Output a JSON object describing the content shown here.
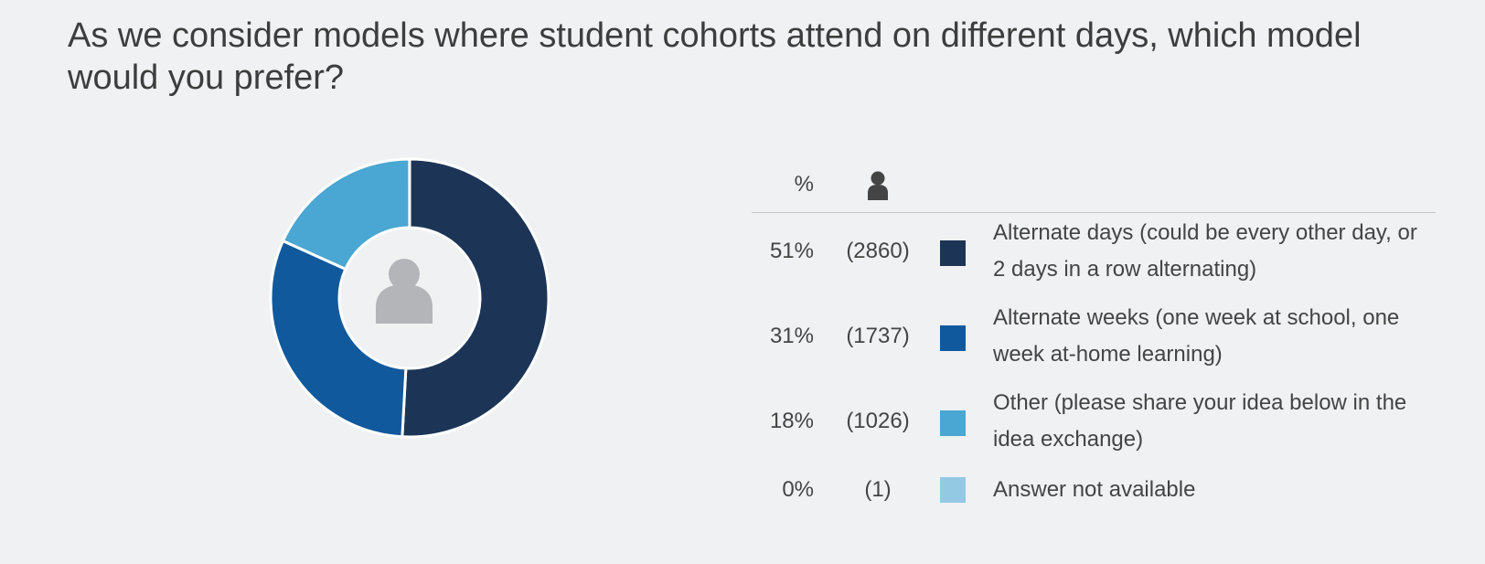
{
  "title": "As we consider models where student cohorts attend on different days, which model would you prefer?",
  "chart_data": {
    "type": "pie",
    "title": "As we consider models where student cohorts attend on different days, which model would you prefer?",
    "columns": {
      "percent": "%",
      "count_icon": "person-icon"
    },
    "center_icon": "person-icon",
    "slices": [
      {
        "label": "Alternate days (could be every other day, or 2 days in a row alternating)",
        "percent": 51,
        "percent_label": "51%",
        "count": 2860,
        "count_label": "(2860)",
        "color": "#1c3557"
      },
      {
        "label": "Alternate weeks (one week at school, one week at-home learning)",
        "percent": 31,
        "percent_label": "31%",
        "count": 1737,
        "count_label": "(1737)",
        "color": "#10599d"
      },
      {
        "label": "Other (please share your idea below in the idea exchange)",
        "percent": 18,
        "percent_label": "18%",
        "count": 1026,
        "count_label": "(1026)",
        "color": "#4aa6d2"
      },
      {
        "label": "Answer not available",
        "percent": 0,
        "percent_label": "0%",
        "count": 1,
        "count_label": "(1)",
        "color": "#93c9e3"
      }
    ]
  }
}
